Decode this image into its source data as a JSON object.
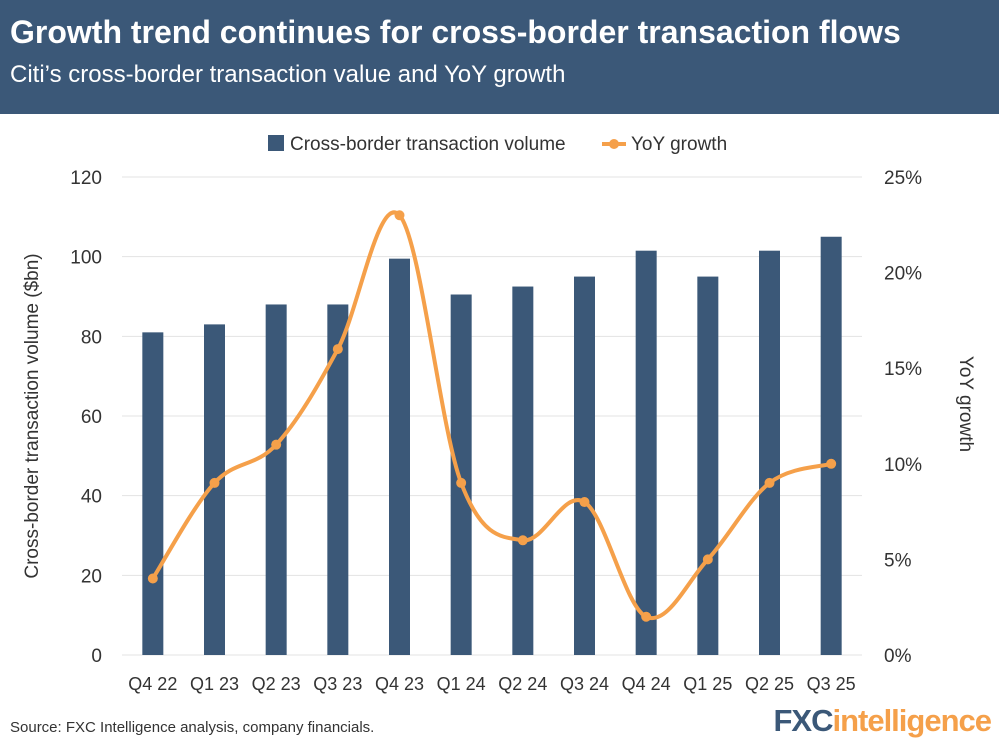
{
  "header": {
    "title": "Growth trend continues for cross-border transaction flows",
    "subtitle": "Citi’s cross-border transaction value and YoY growth"
  },
  "footer": {
    "source": "Source: FXC Intelligence analysis, company financials.",
    "logo_text": "FXCintelligence"
  },
  "colors": {
    "header_bg": "#3b5878",
    "bar": "#3b5878",
    "line": "#f5a04a"
  },
  "chart_data": {
    "type": "bar",
    "categories": [
      "Q4 22",
      "Q1 23",
      "Q2 23",
      "Q3 23",
      "Q4 23",
      "Q1 24",
      "Q2 24",
      "Q3 24",
      "Q4 24",
      "Q1 25",
      "Q2 25",
      "Q3 25"
    ],
    "series": [
      {
        "name": "Cross-border transaction volume",
        "type": "bar",
        "axis": "left",
        "values": [
          81,
          83,
          88,
          88,
          99.5,
          90.5,
          92.5,
          95,
          101.5,
          95,
          101.5,
          105
        ]
      },
      {
        "name": "YoY growth",
        "type": "line",
        "axis": "right",
        "values": [
          4,
          9,
          11,
          16,
          23,
          9,
          6,
          8,
          2,
          5,
          9,
          10
        ]
      }
    ],
    "ylabel": "Cross-border transaction volume ($bn)",
    "y2label": "YoY growth",
    "ylim": [
      0,
      120
    ],
    "yticks": [
      "0",
      "20",
      "40",
      "60",
      "80",
      "100",
      "120"
    ],
    "y2lim": [
      0,
      25
    ],
    "y2ticks": [
      "0%",
      "5%",
      "10%",
      "15%",
      "20%",
      "25%"
    ],
    "grid": true,
    "legend_position": "top"
  }
}
